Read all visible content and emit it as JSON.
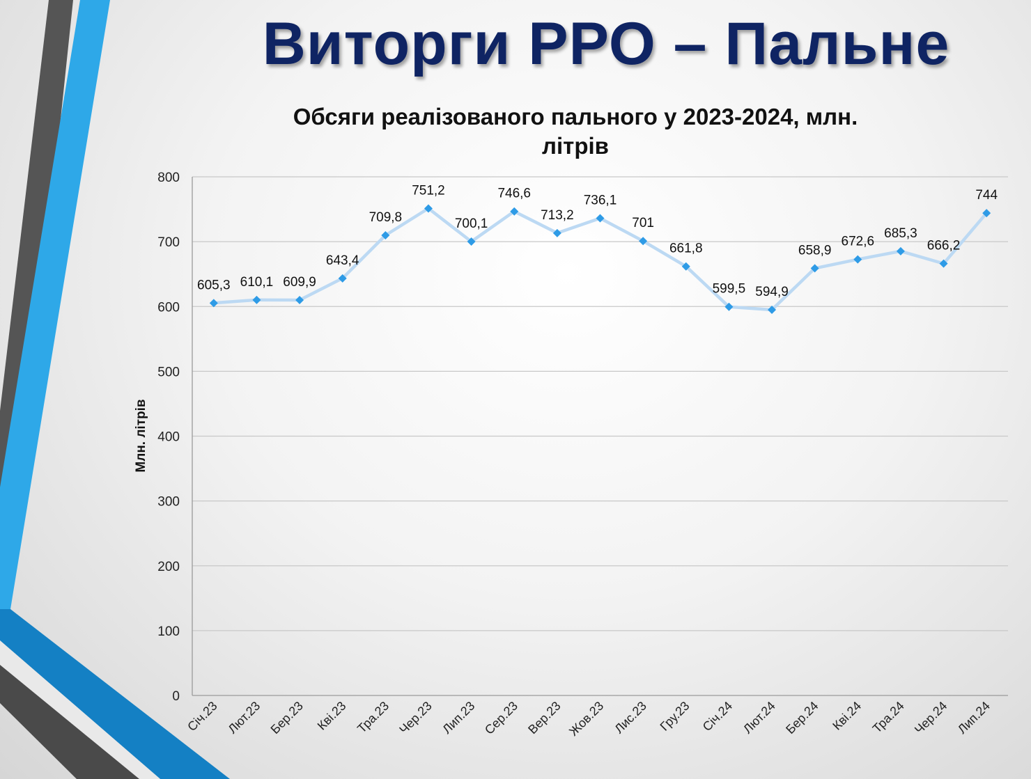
{
  "slide": {
    "title": "Виторги РРО – Пальне"
  },
  "colors": {
    "title": "#0f2463",
    "line": "#bcd9f3",
    "marker": "#2e9be6",
    "grid": "#c8c8c8",
    "stripe_gray": "#555555",
    "stripe_blue": "#2ea8e8",
    "stripe_darkblue": "#1480c4"
  },
  "chart_data": {
    "type": "line",
    "title_lines": [
      "Обсяги реалізованого пального у 2023-2024, млн.",
      "літрів"
    ],
    "xlabel": "",
    "ylabel": "Млн. літрів",
    "ylim": [
      0,
      800
    ],
    "yticks": [
      0,
      100,
      200,
      300,
      400,
      500,
      600,
      700,
      800
    ],
    "grid": true,
    "categories": [
      "Січ.23",
      "Лют.23",
      "Бер.23",
      "Кві.23",
      "Тра.23",
      "Чер.23",
      "Лип.23",
      "Сер.23",
      "Вер.23",
      "Жов.23",
      "Лис.23",
      "Гру.23",
      "Січ.24",
      "Лют.24",
      "Бер.24",
      "Кві.24",
      "Тра.24",
      "Чер.24",
      "Лип.24"
    ],
    "values": [
      605.3,
      610.1,
      609.9,
      643.4,
      709.8,
      751.2,
      700.1,
      746.6,
      713.2,
      736.1,
      701,
      661.8,
      599.5,
      594.9,
      658.9,
      672.6,
      685.3,
      666.2,
      744
    ],
    "data_labels": [
      "605,3",
      "610,1",
      "609,9",
      "643,4",
      "709,8",
      "751,2",
      "700,1",
      "746,6",
      "713,2",
      "736,1",
      "701",
      "661,8",
      "599,5",
      "594,9",
      "658,9",
      "672,6",
      "685,3",
      "666,2",
      "744"
    ]
  }
}
